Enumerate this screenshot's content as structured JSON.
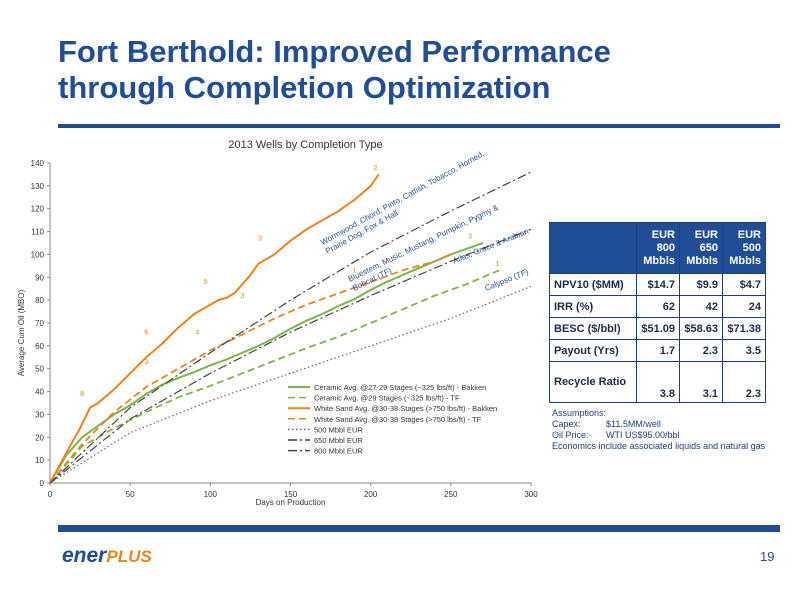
{
  "slide": {
    "title_line1": "Fort Berthold:  Improved Performance",
    "title_line2": "through  Completion Optimization",
    "page_number": "19",
    "logo_ener": "ener",
    "logo_plus": "PLUS"
  },
  "table": {
    "headers": [
      [
        "EUR",
        "800",
        "Mbbls"
      ],
      [
        "EUR",
        "650",
        "Mbbls"
      ],
      [
        "EUR",
        "500",
        "Mbbls"
      ]
    ],
    "rows": [
      {
        "label": "NPV10 ($MM)",
        "values": [
          "$14.7",
          "$9.9",
          "$4.7"
        ]
      },
      {
        "label": "IRR (%)",
        "values": [
          "62",
          "42",
          "24"
        ]
      },
      {
        "label": "BESC ($/bbl)",
        "values": [
          "$51.09",
          "$58.63",
          "$71.38"
        ]
      },
      {
        "label": "Payout (Yrs)",
        "values": [
          "1.7",
          "2.3",
          "3.5"
        ]
      },
      {
        "label": "Recycle Ratio",
        "values": [
          "3.8",
          "3.1",
          "2.3"
        ]
      }
    ]
  },
  "assumptions": {
    "heading": "Assumptions:",
    "capex_key": "Capex:",
    "capex_val": "$11.5MM/well",
    "oil_key": "Oil Price:",
    "oil_val": "WTI US$95.00/bbl",
    "note": "Economics include associated liquids and natural gas"
  },
  "chart_data": {
    "type": "line",
    "title": "2013 Wells by Completion Type",
    "xlabel": "Days on Production",
    "ylabel": "Average Cum Oil (MBO)",
    "xlim": [
      0,
      300
    ],
    "ylim": [
      0,
      140
    ],
    "x_ticks": [
      "0",
      "50",
      "100",
      "150",
      "200",
      "250",
      "300"
    ],
    "y_ticks": [
      "0",
      "10",
      "20",
      "30",
      "40",
      "50",
      "60",
      "70",
      "80",
      "90",
      "100",
      "110",
      "120",
      "130",
      "140"
    ],
    "grid": false,
    "legend_position": "bottom-center",
    "series": [
      {
        "name": "Ceramic Avg. @27-29 Stages (~325 lbs/ft) - Bakken",
        "color": "#7ab648",
        "dash": "solid",
        "x": [
          0,
          10,
          20,
          30,
          40,
          50,
          60,
          70,
          80,
          90,
          100,
          110,
          120,
          130,
          140,
          150,
          160,
          170,
          180,
          190,
          200,
          210,
          220,
          230,
          240,
          250,
          260,
          270
        ],
        "y": [
          0,
          12,
          20,
          25,
          30,
          34,
          39,
          43,
          46,
          48.5,
          51.5,
          54,
          57,
          60,
          63.5,
          67.5,
          71,
          74,
          77.5,
          80.5,
          84.5,
          88,
          91,
          94,
          97,
          100,
          102.5,
          105
        ]
      },
      {
        "name": "Ceramic Avg. @29 Stages (~325 lbs/ft) - TF",
        "color": "#7ab648",
        "dash": "dashed",
        "x": [
          0,
          20,
          40,
          60,
          80,
          100,
          120,
          140,
          160,
          180,
          200,
          220,
          240,
          260,
          280
        ],
        "y": [
          0,
          16,
          24,
          31,
          37.5,
          42.5,
          48,
          53.5,
          59,
          64,
          70,
          76,
          82,
          87,
          93
        ]
      },
      {
        "name": "White Sand Avg. @30-38 Stages (>750 lbs/ft) - Bakken",
        "color": "#f0821e",
        "dash": "solid",
        "x": [
          0,
          10,
          18,
          25,
          30,
          40,
          50,
          60,
          70,
          80,
          90,
          100,
          105,
          110,
          115,
          120,
          125,
          130,
          140,
          150,
          160,
          170,
          180,
          190,
          200,
          205
        ],
        "y": [
          0,
          13,
          23,
          33,
          35,
          41,
          48,
          55,
          61,
          68,
          74,
          78,
          80,
          81,
          83,
          87,
          91,
          96,
          100,
          106,
          111,
          115,
          119,
          124,
          130,
          135
        ]
      },
      {
        "name": "White Sand Avg. @30-38 Stages (>750 lbs/ft) - TF",
        "color": "#f0821e",
        "dash": "dashed",
        "x": [
          0,
          20,
          40,
          60,
          80,
          100,
          120,
          140,
          160,
          180,
          200,
          220,
          240,
          250
        ],
        "y": [
          0,
          17,
          31,
          42,
          50,
          58,
          65,
          72,
          78,
          83,
          88,
          93,
          97,
          100
        ]
      },
      {
        "name": "500 Mbbl EUR",
        "color": "#666666",
        "dash": "dotted",
        "x": [
          0,
          50,
          100,
          150,
          200,
          250,
          300
        ],
        "y": [
          0,
          22,
          36,
          48,
          60,
          72,
          86
        ]
      },
      {
        "name": "650 Mbbl EUR",
        "color": "#444444",
        "dash": "dashdot",
        "x": [
          0,
          50,
          100,
          150,
          200,
          250,
          300
        ],
        "y": [
          0,
          28,
          48,
          66,
          82,
          97,
          111
        ]
      },
      {
        "name": "800 Mbbl EUR",
        "color": "#444444",
        "dash": "dashdot",
        "x": [
          0,
          50,
          100,
          150,
          200,
          250,
          300
        ],
        "y": [
          0,
          33,
          57,
          80,
          101,
          119,
          136
        ]
      }
    ],
    "point_labels": [
      {
        "text": "2",
        "x": 203,
        "y": 137,
        "color": "#f0821e"
      },
      {
        "text": "3",
        "x": 131,
        "y": 106,
        "color": "#f0821e"
      },
      {
        "text": "5",
        "x": 97,
        "y": 87,
        "color": "#f0821e"
      },
      {
        "text": "6",
        "x": 60,
        "y": 65,
        "color": "#f0821e"
      },
      {
        "text": "8",
        "x": 20,
        "y": 38,
        "color": "#f0821e"
      },
      {
        "text": "1",
        "x": 190,
        "y": 92,
        "color": "#f0821e"
      },
      {
        "text": "3",
        "x": 120,
        "y": 81,
        "color": "#f0821e"
      },
      {
        "text": "4",
        "x": 92,
        "y": 65,
        "color": "#f0821e"
      },
      {
        "text": "3",
        "x": 60,
        "y": 52,
        "color": "#7ab648"
      },
      {
        "text": "3",
        "x": 262,
        "y": 107,
        "color": "#7ab648"
      },
      {
        "text": "1",
        "x": 279,
        "y": 95,
        "color": "#7ab648"
      }
    ],
    "annotations": [
      {
        "lines": [
          "Wormwood, Chord, Pinto, Catfish, Tobacco, Horned,",
          "Prairie Dog, Fox & Hall"
        ],
        "x": 170,
        "y": 104,
        "angle": -29,
        "color": "#1f4e96"
      },
      {
        "lines": [
          "Bluestem, Music, Mustang, Pumpkin, Pygmy &",
          "Bobcat (TF)"
        ],
        "x": 187,
        "y": 88,
        "angle": -26,
        "color": "#1f4e96"
      },
      {
        "lines": [
          "Atlas, Grace & Arabian"
        ],
        "x": 252,
        "y": 96,
        "angle": -22,
        "color": "#1f4e96"
      },
      {
        "lines": [
          "Calypso (TF)"
        ],
        "x": 272,
        "y": 84,
        "angle": -22,
        "color": "#1f4e96"
      }
    ]
  }
}
